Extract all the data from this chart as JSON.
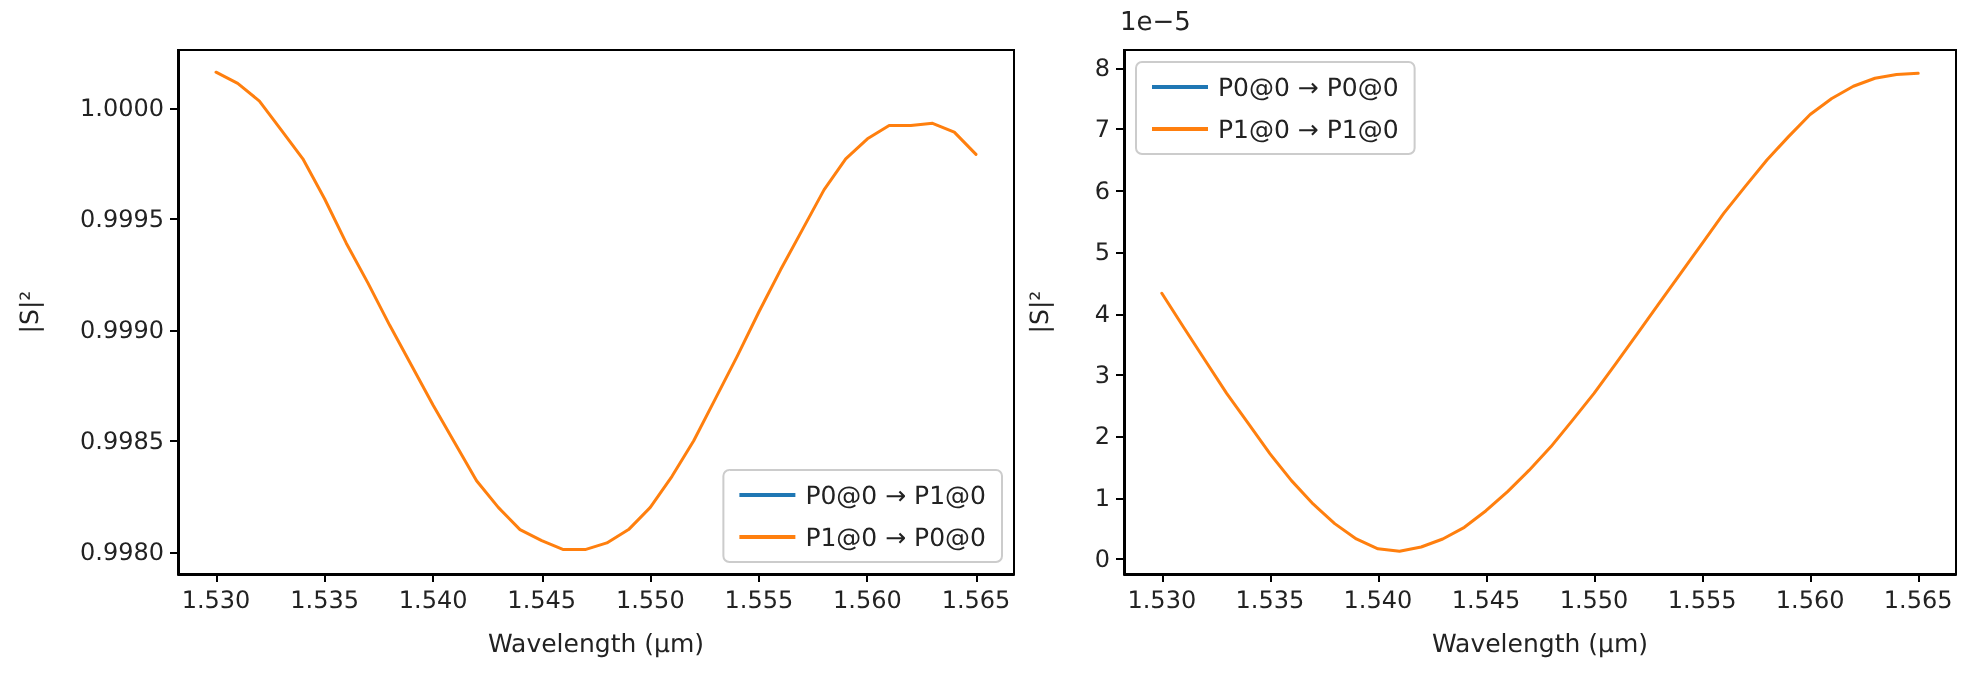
{
  "chart_data": [
    {
      "type": "line",
      "xlabel": "Wavelength (µm)",
      "ylabel": "|S|²",
      "marker": "none",
      "legend": "bottom right",
      "x": [
        1.53,
        1.531,
        1.532,
        1.533,
        1.534,
        1.535,
        1.536,
        1.537,
        1.538,
        1.539,
        1.54,
        1.541,
        1.542,
        1.543,
        1.544,
        1.545,
        1.546,
        1.547,
        1.548,
        1.549,
        1.55,
        1.551,
        1.552,
        1.553,
        1.554,
        1.555,
        1.556,
        1.557,
        1.558,
        1.559,
        1.56,
        1.561,
        1.562,
        1.563,
        1.564,
        1.565
      ],
      "series": [
        {
          "name": "P0@0 → P1@0",
          "color": "#1f77b4",
          "values": [
            null,
            null,
            null,
            null,
            null,
            null,
            null,
            null,
            null,
            null,
            null,
            null,
            null,
            null,
            null,
            null,
            null,
            null,
            null,
            null,
            null,
            null,
            null,
            null,
            null,
            null,
            null,
            null,
            null,
            null,
            null,
            null,
            null,
            null,
            null,
            null
          ]
        },
        {
          "name": "P1@0 → P0@0",
          "color": "#ff7f0e",
          "values": [
            1.00016,
            1.00011,
            1.00003,
            0.9999,
            0.99977,
            0.99959,
            0.99939,
            0.99921,
            0.99902,
            0.99884,
            0.99866,
            0.99849,
            0.99832,
            0.9982,
            0.9981,
            0.99805,
            0.99801,
            0.99801,
            0.99804,
            0.9981,
            0.9982,
            0.99834,
            0.9985,
            0.99869,
            0.99888,
            0.99908,
            0.99927,
            0.99945,
            0.99963,
            0.99977,
            0.99986,
            0.99992,
            0.99992,
            0.99993,
            0.99989,
            0.99979
          ]
        }
      ],
      "xlim": [
        1.52825,
        1.56675
      ],
      "ylim": [
        0.9979,
        1.00026
      ],
      "xticks": [
        {
          "value": 1.53,
          "label": "1.530"
        },
        {
          "value": 1.535,
          "label": "1.535"
        },
        {
          "value": 1.54,
          "label": "1.540"
        },
        {
          "value": 1.545,
          "label": "1.545"
        },
        {
          "value": 1.55,
          "label": "1.550"
        },
        {
          "value": 1.555,
          "label": "1.555"
        },
        {
          "value": 1.56,
          "label": "1.560"
        },
        {
          "value": 1.565,
          "label": "1.565"
        }
      ],
      "yticks": [
        {
          "value": 0.998,
          "label": "0.9980"
        },
        {
          "value": 0.9985,
          "label": "0.9985"
        },
        {
          "value": 0.999,
          "label": "0.9990"
        },
        {
          "value": 0.9995,
          "label": "0.9995"
        },
        {
          "value": 1.0,
          "label": "1.0000"
        }
      ]
    },
    {
      "type": "line",
      "xlabel": "Wavelength (µm)",
      "ylabel": "|S|²",
      "marker": "none",
      "legend": "top left",
      "annotations": [
        "1e−5"
      ],
      "x": [
        1.53,
        1.531,
        1.532,
        1.533,
        1.534,
        1.535,
        1.536,
        1.537,
        1.538,
        1.539,
        1.54,
        1.541,
        1.542,
        1.543,
        1.544,
        1.545,
        1.546,
        1.547,
        1.548,
        1.549,
        1.55,
        1.551,
        1.552,
        1.553,
        1.554,
        1.555,
        1.556,
        1.557,
        1.558,
        1.559,
        1.56,
        1.561,
        1.562,
        1.563,
        1.564,
        1.565
      ],
      "series": [
        {
          "name": "P0@0 → P0@0",
          "color": "#1f77b4",
          "values": [
            null,
            null,
            null,
            null,
            null,
            null,
            null,
            null,
            null,
            null,
            null,
            null,
            null,
            null,
            null,
            null,
            null,
            null,
            null,
            null,
            null,
            null,
            null,
            null,
            null,
            null,
            null,
            null,
            null,
            null,
            null,
            null,
            null,
            null,
            null,
            null
          ]
        },
        {
          "name": "P1@0 → P1@0",
          "color": "#ff7f0e",
          "values": [
            4.33,
            3.78,
            3.24,
            2.7,
            2.21,
            1.72,
            1.28,
            0.9,
            0.58,
            0.33,
            0.17,
            0.13,
            0.2,
            0.33,
            0.52,
            0.79,
            1.1,
            1.45,
            1.83,
            2.26,
            2.7,
            3.18,
            3.67,
            4.16,
            4.65,
            5.14,
            5.63,
            6.07,
            6.5,
            6.88,
            7.24,
            7.5,
            7.7,
            7.83,
            7.89,
            7.91
          ]
        }
      ],
      "xlim": [
        1.52825,
        1.56675
      ],
      "ylim": [
        -0.24,
        8.29
      ],
      "xticks": [
        {
          "value": 1.53,
          "label": "1.530"
        },
        {
          "value": 1.535,
          "label": "1.535"
        },
        {
          "value": 1.54,
          "label": "1.540"
        },
        {
          "value": 1.545,
          "label": "1.545"
        },
        {
          "value": 1.55,
          "label": "1.550"
        },
        {
          "value": 1.555,
          "label": "1.555"
        },
        {
          "value": 1.56,
          "label": "1.560"
        },
        {
          "value": 1.565,
          "label": "1.565"
        }
      ],
      "yticks": [
        0,
        1,
        2,
        3,
        4,
        5,
        6,
        7,
        8
      ]
    }
  ]
}
